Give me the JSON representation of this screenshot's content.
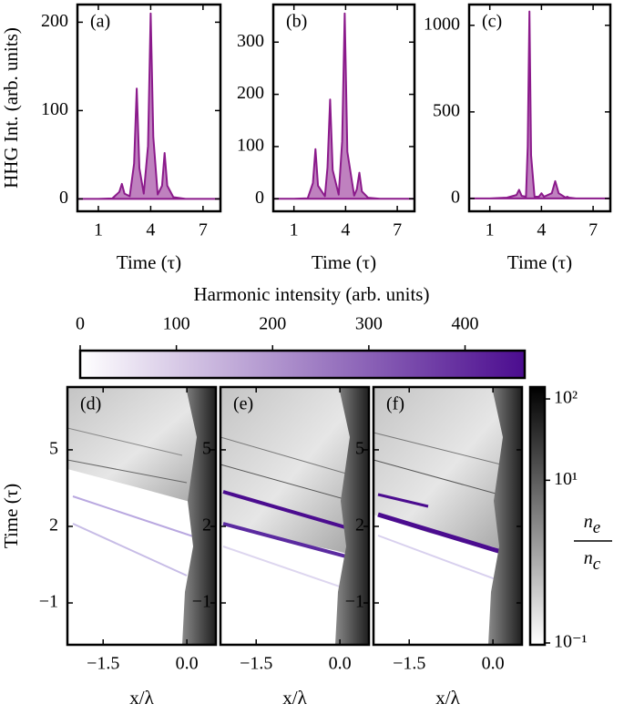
{
  "chart_data": [
    {
      "type": "line",
      "annotation": "(a)",
      "ylabel": "HHG Int. (arb. units)",
      "xlabel": "Time (τ)",
      "x": [
        -0.2,
        1,
        1.8,
        2.2,
        2.35,
        2.5,
        2.8,
        3.05,
        3.2,
        3.35,
        3.6,
        3.85,
        4.0,
        4.15,
        4.4,
        4.65,
        4.8,
        4.95,
        5.3,
        6,
        7,
        8
      ],
      "values": [
        0,
        0,
        0.5,
        8,
        17,
        6,
        3,
        40,
        125,
        35,
        6,
        60,
        210,
        70,
        5,
        15,
        52,
        15,
        2,
        0,
        0,
        0
      ],
      "color": "#8b1a8b",
      "xlim": [
        -0.2,
        8.0
      ],
      "ylim": [
        -14,
        220
      ],
      "xticks": [
        1,
        4,
        7
      ],
      "yticks": [
        0,
        100,
        200
      ]
    },
    {
      "type": "line",
      "annotation": "(b)",
      "xlabel": "Time (τ)",
      "x": [
        -0.2,
        1,
        1.8,
        2.1,
        2.25,
        2.4,
        2.8,
        2.95,
        3.1,
        3.25,
        3.6,
        3.8,
        3.95,
        4.1,
        4.5,
        4.65,
        4.8,
        4.95,
        5.3,
        6,
        7,
        8
      ],
      "values": [
        0,
        0,
        1,
        30,
        95,
        25,
        5,
        60,
        190,
        55,
        8,
        110,
        355,
        90,
        6,
        18,
        50,
        14,
        2,
        0,
        0,
        0
      ],
      "color": "#8b1a8b",
      "xlim": [
        -0.2,
        8.0
      ],
      "ylim": [
        -24,
        372
      ],
      "xticks": [
        1,
        4,
        7
      ],
      "yticks": [
        0,
        100,
        200,
        300
      ]
    },
    {
      "type": "line",
      "annotation": "(c)",
      "xlabel": "Time (τ)",
      "x": [
        -0.2,
        1,
        2,
        2.55,
        2.7,
        2.85,
        3.1,
        3.2,
        3.3,
        3.4,
        3.6,
        3.85,
        4.0,
        4.15,
        4.6,
        4.8,
        5.0,
        5.4,
        5.5,
        5.6,
        6,
        7,
        8
      ],
      "values": [
        0,
        0,
        5,
        20,
        50,
        15,
        10,
        300,
        1080,
        250,
        10,
        10,
        30,
        10,
        30,
        100,
        30,
        5,
        10,
        5,
        0,
        0,
        0
      ],
      "color": "#8b1a8b",
      "xlim": [
        -0.2,
        8.0
      ],
      "ylim": [
        -74,
        1120
      ],
      "xticks": [
        1,
        4,
        7
      ],
      "yticks": [
        0,
        500,
        1000
      ]
    },
    {
      "type": "colorbar",
      "orientation": "horizontal",
      "title": "Harmonic intensity (arb. units)",
      "xlim": [
        0,
        462
      ],
      "xticks": [
        0,
        100,
        200,
        300,
        400
      ],
      "colors": [
        "#ffffff",
        "#4b0c8f"
      ]
    },
    {
      "type": "image",
      "annotation": "(d)",
      "ylabel": "Time (τ)",
      "xlabel": "x/λ",
      "xlim": [
        -2.14,
        0.52
      ],
      "ylim": [
        -2.64,
        7.46
      ],
      "xticks": [
        {
          "value": -1.5,
          "label": "−1.5"
        },
        {
          "value": 0,
          "label": "0.0"
        }
      ],
      "yticks": [
        {
          "value": -1,
          "label": "−1"
        },
        2,
        5
      ]
    },
    {
      "type": "image",
      "annotation": "(e)",
      "xlabel": "x/λ",
      "xlim": [
        -2.14,
        0.52
      ],
      "ylim": [
        -2.64,
        7.46
      ],
      "xticks": [
        {
          "value": -1.5,
          "label": "−1.5"
        },
        {
          "value": 0,
          "label": "0.0"
        }
      ],
      "yticks": [
        {
          "value": -1,
          "label": "−1"
        },
        2,
        5
      ]
    },
    {
      "type": "image",
      "annotation": "(f)",
      "xlabel": "x/λ",
      "xlim": [
        -2.14,
        0.52
      ],
      "ylim": [
        -2.64,
        7.46
      ],
      "xticks": [
        {
          "value": -1.5,
          "label": "−1.5"
        },
        {
          "value": 0,
          "label": "0.0"
        }
      ],
      "yticks": [
        {
          "value": -1,
          "label": "−1"
        },
        2,
        5
      ]
    },
    {
      "type": "colorbar",
      "orientation": "vertical",
      "log_scale": true,
      "ylim": [
        0.095,
        140
      ],
      "yticks": [
        {
          "value": 0.1,
          "label": "10⁻¹"
        },
        {
          "value": 10,
          "label": "10¹"
        },
        {
          "value": 100,
          "label": "10²"
        }
      ],
      "label": {
        "numerator": {
          "base": "n",
          "sub": "e"
        },
        "denominator": {
          "base": "n",
          "sub": "c"
        }
      },
      "colors": [
        "#ffffff",
        "#000000"
      ]
    }
  ]
}
